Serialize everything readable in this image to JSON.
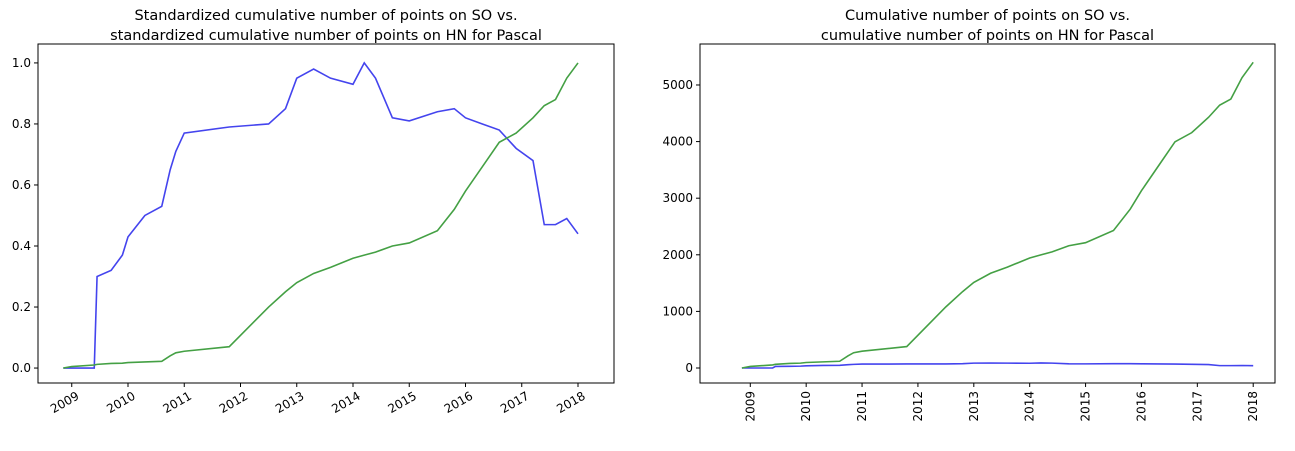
{
  "chart_data": [
    {
      "type": "line",
      "title": [
        "Standardized cumulative number of points on SO vs.",
        "standardized cumulative number of points on HN for Pascal"
      ],
      "x": [
        2008.85,
        2009.0,
        2009.4,
        2009.45,
        2009.7,
        2009.9,
        2010.0,
        2010.3,
        2010.6,
        2010.75,
        2010.85,
        2011.0,
        2011.8,
        2012.5,
        2012.8,
        2013.0,
        2013.3,
        2013.6,
        2014.0,
        2014.2,
        2014.4,
        2014.7,
        2015.0,
        2015.5,
        2015.8,
        2016.0,
        2016.3,
        2016.6,
        2016.9,
        2017.2,
        2017.4,
        2017.6,
        2017.8,
        2018.0
      ],
      "series": [
        {
          "color": "#4444ee",
          "values": [
            0,
            0,
            0,
            0.3,
            0.32,
            0.37,
            0.43,
            0.5,
            0.53,
            0.65,
            0.71,
            0.77,
            0.79,
            0.8,
            0.85,
            0.95,
            0.98,
            0.95,
            0.93,
            1.0,
            0.95,
            0.82,
            0.81,
            0.84,
            0.85,
            0.82,
            0.8,
            0.78,
            0.72,
            0.68,
            0.47,
            0.47,
            0.49,
            0.44
          ]
        },
        {
          "color": "#44a044",
          "values": [
            0,
            0.005,
            0.01,
            0.012,
            0.015,
            0.016,
            0.018,
            0.02,
            0.022,
            0.04,
            0.05,
            0.055,
            0.07,
            0.2,
            0.25,
            0.28,
            0.31,
            0.33,
            0.36,
            0.37,
            0.38,
            0.4,
            0.41,
            0.45,
            0.52,
            0.58,
            0.66,
            0.74,
            0.77,
            0.82,
            0.86,
            0.88,
            0.95,
            1.0
          ]
        }
      ],
      "xlim": [
        2008.4,
        2018.64
      ],
      "xticks": [
        2009,
        2010,
        2011,
        2012,
        2013,
        2014,
        2015,
        2016,
        2017,
        2018
      ],
      "ylim": [
        -0.049,
        1.062
      ],
      "yticks": [
        {
          "value": 0,
          "label": "0.0"
        },
        0.2,
        0.4,
        0.6,
        0.8,
        {
          "value": 1,
          "label": "1.0"
        }
      ]
    },
    {
      "type": "line",
      "title": [
        "Cumulative number of points on SO vs.",
        "cumulative number of points on HN for Pascal"
      ],
      "x": [
        2008.85,
        2009.0,
        2009.4,
        2009.45,
        2009.7,
        2009.9,
        2010.0,
        2010.3,
        2010.6,
        2010.75,
        2010.85,
        2011.0,
        2011.8,
        2012.5,
        2012.8,
        2013.0,
        2013.3,
        2013.6,
        2014.0,
        2014.2,
        2014.4,
        2014.7,
        2015.0,
        2015.5,
        2015.8,
        2016.0,
        2016.3,
        2016.6,
        2016.9,
        2017.2,
        2017.4,
        2017.6,
        2017.8,
        2018.0
      ],
      "series": [
        {
          "color": "#4444ee",
          "values": [
            0,
            0,
            0,
            27,
            29,
            33,
            39,
            45,
            48,
            59,
            64,
            69,
            71,
            72,
            77,
            86,
            88,
            86,
            84,
            90,
            86,
            74,
            73,
            76,
            77,
            74,
            72,
            70,
            65,
            61,
            42,
            42,
            44,
            40
          ]
        },
        {
          "color": "#44a044",
          "values": [
            0,
            27,
            54,
            65,
            81,
            86,
            97,
            108,
            119,
            216,
            270,
            297,
            378,
            1080,
            1350,
            1512,
            1674,
            1782,
            1944,
            1998,
            2052,
            2160,
            2214,
            2430,
            2808,
            3132,
            3564,
            3996,
            4158,
            4428,
            4644,
            4752,
            5130,
            5400
          ]
        }
      ],
      "xlim": [
        2008.1,
        2018.39
      ],
      "xticks": [
        2009,
        2010,
        2011,
        2012,
        2013,
        2014,
        2015,
        2016,
        2017,
        2018
      ],
      "ylim": [
        -265,
        5724
      ],
      "yticks": [
        0,
        1000,
        2000,
        3000,
        4000,
        5000
      ]
    }
  ]
}
